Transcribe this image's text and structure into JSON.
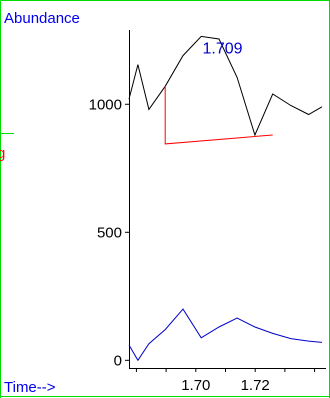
{
  "chart_data": {
    "type": "line",
    "title": "",
    "xlabel": "Time-->",
    "ylabel": "Abundance",
    "xlim": [
      1.6775,
      1.7425
    ],
    "ylim": [
      -30,
      1290
    ],
    "x_tick_values": [
      1.7,
      1.72
    ],
    "x_tick_labels": [
      "1.70",
      "1.72"
    ],
    "x_minor_tick_values": [
      1.68,
      1.69,
      1.7,
      1.71,
      1.72,
      1.73,
      1.74
    ],
    "y_tick_values": [
      0,
      500,
      1000
    ],
    "y_tick_labels": [
      "0",
      "500",
      "1000"
    ],
    "series": [
      {
        "color": "#000000",
        "x": [
          1.6775,
          1.6805,
          1.6842,
          1.6897,
          1.6957,
          1.7018,
          1.7078,
          1.7139,
          1.7199,
          1.7259,
          1.732,
          1.738,
          1.7425
        ],
        "y": [
          1020,
          1155,
          980,
          1070,
          1190,
          1265,
          1255,
          1105,
          880,
          1040,
          995,
          960,
          990
        ]
      },
      {
        "color": "#0000cc",
        "x": [
          1.6775,
          1.6805,
          1.6842,
          1.6897,
          1.6957,
          1.7018,
          1.7078,
          1.7139,
          1.7199,
          1.7259,
          1.732,
          1.738,
          1.7425
        ],
        "y": [
          60,
          0,
          65,
          120,
          200,
          88,
          130,
          165,
          130,
          105,
          85,
          75,
          70
        ]
      }
    ],
    "baseline": {
      "color": "#ff0000",
      "x": [
        1.6897,
        1.6897,
        1.7259
      ],
      "y": [
        1070,
        845,
        880
      ]
    },
    "annotations": [
      {
        "text": "1.709",
        "x": 1.709,
        "y": 1265,
        "color": "#0000cc"
      }
    ],
    "colors": {
      "axis": "#000000",
      "axis_titles": "#0000ee",
      "frame": "#00dd00",
      "edge_mark": "#ff0000"
    },
    "edge_mark_text": "g"
  }
}
